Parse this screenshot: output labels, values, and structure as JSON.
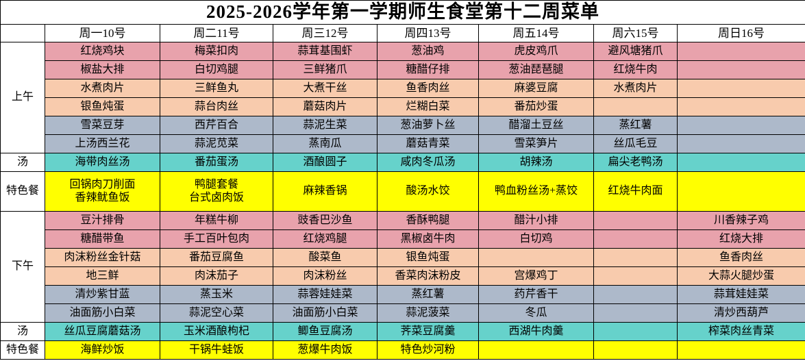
{
  "title": "2025-2026学年第一学期师生食堂第十二周菜单",
  "columns": [
    "周一10号",
    "周二11号",
    "周三12号",
    "周四13号",
    "周五14号",
    "周六15号",
    "周日16号"
  ],
  "colors": {
    "pink": "#e8a2ac",
    "orange": "#f8cbad",
    "blue": "#adb9ca",
    "teal": "#66d2cb",
    "yellow": "#ffff00",
    "header_bg": "#ffffff",
    "border": "#000000"
  },
  "sections": [
    {
      "id": "morning",
      "label": "上午",
      "rows": [
        {
          "color": "pink",
          "cells": [
            "红烧鸡块",
            "梅菜扣肉",
            "蒜茸基围虾",
            "葱油鸡",
            "虎皮鸡爪",
            "避风塘猪爪",
            ""
          ]
        },
        {
          "color": "pink",
          "cells": [
            "椒盐大排",
            "白切鸡腿",
            "三鲜猪爪",
            "糖醋仔排",
            "葱油琵琶腿",
            "红烧牛肉",
            ""
          ]
        },
        {
          "color": "orange",
          "cells": [
            "水煮肉片",
            "三鲜鱼丸",
            "大煮干丝",
            "鱼香肉丝",
            "麻婆豆腐",
            "水煮肉片",
            ""
          ]
        },
        {
          "color": "orange",
          "cells": [
            "银鱼炖蛋",
            "蒜台肉丝",
            "蘑菇肉片",
            "烂糊白菜",
            "番茄炒蛋",
            "",
            ""
          ]
        },
        {
          "color": "blue",
          "cells": [
            "雪菜豆芽",
            "西芹百合",
            "蒜泥生菜",
            "葱油萝卜丝",
            "醋溜土豆丝",
            "蒸红薯",
            ""
          ]
        },
        {
          "color": "blue",
          "cells": [
            "上汤西兰花",
            "蒜泥苋菜",
            "蒸南瓜",
            "蘑菇青菜",
            "雪菜笋片",
            "丝瓜毛豆",
            ""
          ]
        }
      ]
    },
    {
      "id": "soup-noon",
      "label": "汤",
      "rows": [
        {
          "color": "teal",
          "cells": [
            "海带肉丝汤",
            "番茄蛋汤",
            "酒酿圆子",
            "咸肉冬瓜汤",
            "胡辣汤",
            "扁尖老鸭汤",
            ""
          ]
        }
      ]
    },
    {
      "id": "special-noon",
      "label": "特色餐",
      "rows": [
        {
          "color": "yellow",
          "tall": true,
          "cells": [
            "回锅肉刀削面\n香辣鱿鱼饭",
            "鸭腿套餐\n台式卤肉饭",
            "麻辣香锅",
            "酸汤水饺",
            "鸭血粉丝汤+蒸饺",
            "红烧牛肉面",
            ""
          ]
        }
      ]
    },
    {
      "id": "afternoon",
      "label": "下午",
      "rows": [
        {
          "color": "pink",
          "cells": [
            "豆汁排骨",
            "年糕牛柳",
            "豉香巴沙鱼",
            "香酥鸭腿",
            "醋汁小排",
            "",
            "川香辣子鸡"
          ]
        },
        {
          "color": "pink",
          "cells": [
            "糖醋带鱼",
            "手工百叶包肉",
            "红烧鸡腿",
            "黑椒卤牛肉",
            "白切鸡",
            "",
            "红烧大排"
          ]
        },
        {
          "color": "orange",
          "cells": [
            "肉沫粉丝金针菇",
            "番茄豆腐鱼",
            "酸菜鱼",
            "银鱼炖蛋",
            "",
            "",
            "鱼香肉丝"
          ]
        },
        {
          "color": "orange",
          "cells": [
            "地三鲜",
            "肉沫茄子",
            "肉沫粉丝",
            "香菜肉沫粉皮",
            "宫爆鸡丁",
            "",
            "大蒜火腿炒蛋"
          ]
        },
        {
          "color": "blue",
          "cells": [
            "清炒紫甘蓝",
            "蒸玉米",
            "蒜蓉娃娃菜",
            "蒸红薯",
            "药芹香干",
            "",
            "蒜茸娃娃菜"
          ]
        },
        {
          "color": "blue",
          "cells": [
            "油面筋小白菜",
            "蒜泥空心菜",
            "油面筋小白菜",
            "蒜泥菠菜",
            "冬瓜",
            "",
            "清炒西葫芦"
          ]
        }
      ]
    },
    {
      "id": "soup-evening",
      "label": "汤",
      "rows": [
        {
          "color": "teal",
          "cells": [
            "丝瓜豆腐蘑菇汤",
            "玉米酒酿枸杞",
            "鲫鱼豆腐汤",
            "荠菜豆腐羹",
            "西湖牛肉羹",
            "",
            "榨菜肉丝青菜"
          ]
        }
      ]
    },
    {
      "id": "special-evening",
      "label": "特色餐",
      "rows": [
        {
          "color": "yellow",
          "cells": [
            "海鲜炒饭",
            "干锅牛蛙饭",
            "葱爆牛肉饭",
            "特色炒河粉",
            "",
            "",
            ""
          ]
        }
      ]
    }
  ]
}
